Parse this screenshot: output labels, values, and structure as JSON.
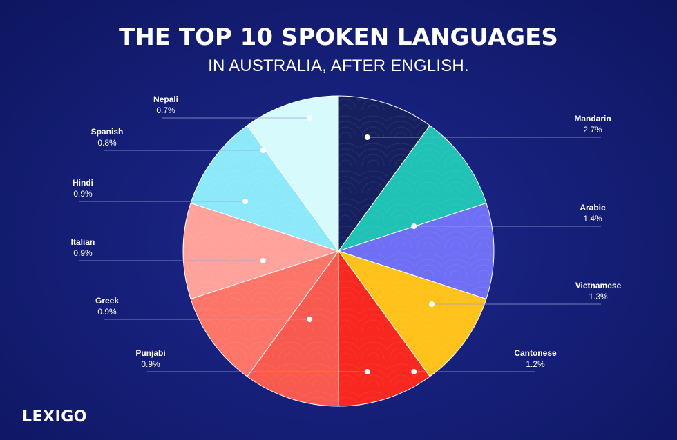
{
  "title": "THE TOP 10 SPOKEN LANGUAGES",
  "subtitle": "IN AUSTRALIA, AFTER ENGLISH.",
  "brand": {
    "logo_text": "LEXIGO"
  },
  "colors": {
    "background": "#16207a",
    "leader_line": "#9aa3d6",
    "slice_border": "#ffffff"
  },
  "chart_data": {
    "type": "pie",
    "title": "THE TOP 10 SPOKEN LANGUAGES",
    "subtitle": "IN AUSTRALIA, AFTER ENGLISH.",
    "slices": [
      {
        "label": "Mandarin",
        "value": 2.7,
        "display": "2.7%",
        "color": "#16205e"
      },
      {
        "label": "Arabic",
        "value": 1.4,
        "display": "1.4%",
        "color": "#1fc2b5"
      },
      {
        "label": "Vietnamese",
        "value": 1.3,
        "display": "1.3%",
        "color": "#6f6ff5"
      },
      {
        "label": "Cantonese",
        "value": 1.2,
        "display": "1.2%",
        "color": "#ffc21a"
      },
      {
        "label": "Punjabi",
        "value": 0.9,
        "display": "0.9%",
        "color": "#f8271f"
      },
      {
        "label": "Greek",
        "value": 0.9,
        "display": "0.9%",
        "color": "#f85a4f"
      },
      {
        "label": "Italian",
        "value": 0.9,
        "display": "0.9%",
        "color": "#fd7569"
      },
      {
        "label": "Hindi",
        "value": 0.9,
        "display": "0.9%",
        "color": "#ffa29c"
      },
      {
        "label": "Spanish",
        "value": 0.8,
        "display": "0.8%",
        "color": "#8de9fa"
      },
      {
        "label": "Nepali",
        "value": 0.7,
        "display": "0.7%",
        "color": "#d7fbfd"
      }
    ],
    "legend": "callout labels around pie"
  }
}
